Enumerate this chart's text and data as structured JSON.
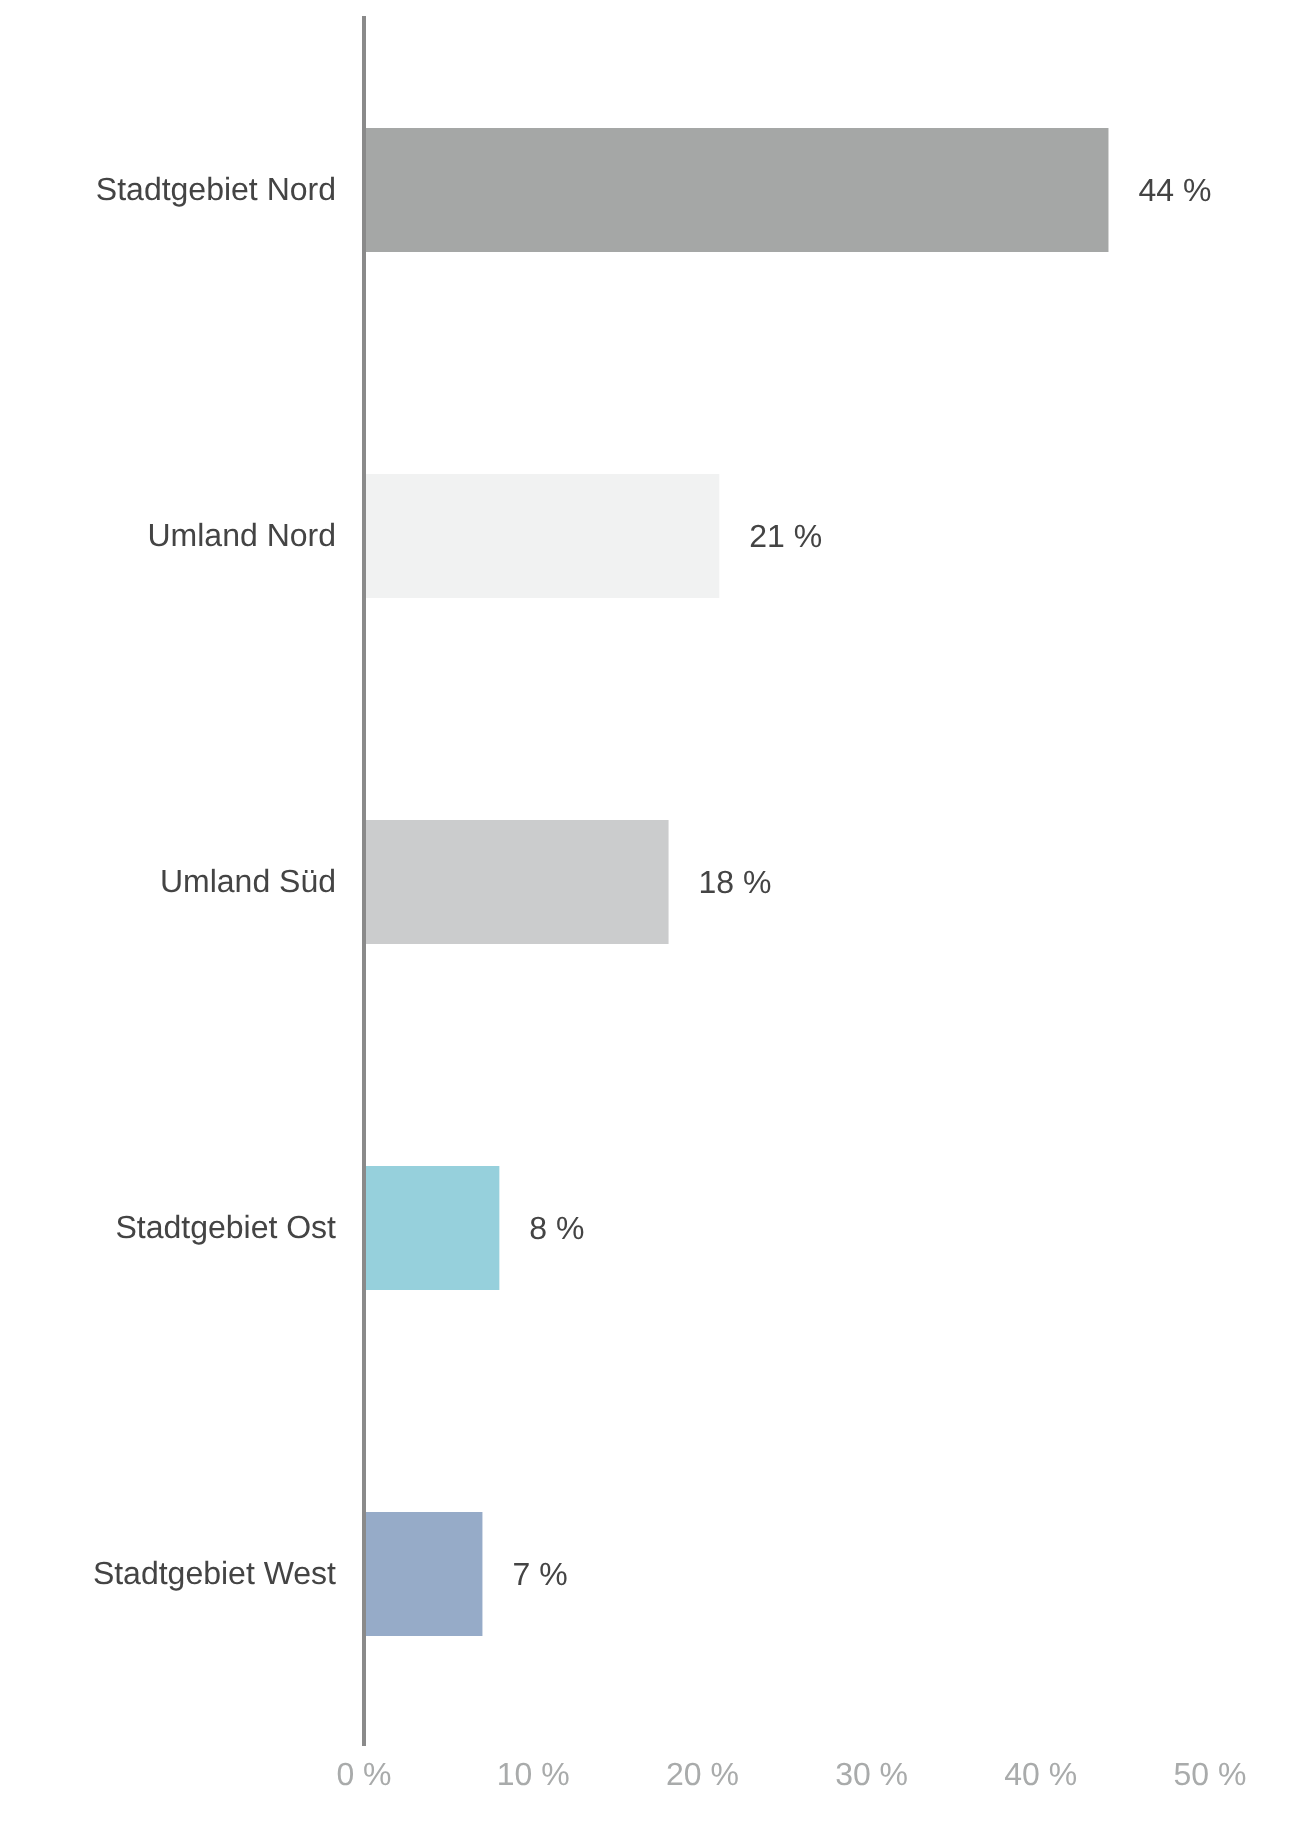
{
  "chart_data": {
    "type": "bar",
    "orientation": "horizontal",
    "categories": [
      "Stadtgebiet Nord",
      "Umland Nord",
      "Umland Süd",
      "Stadtgebiet Ost",
      "Stadtgebiet West"
    ],
    "values": [
      44,
      21,
      18,
      8,
      7
    ],
    "colors": [
      "#a5a7a6",
      "#f1f2f2",
      "#cbcccd",
      "#96d0dc",
      "#96abc8"
    ],
    "value_labels": [
      "44 %",
      "21 %",
      "18 %",
      "8 %",
      "7 %"
    ],
    "xlim": [
      0,
      50
    ],
    "xticks": [
      {
        "value": 0,
        "label": "0 %"
      },
      {
        "value": 10,
        "label": "10 %"
      },
      {
        "value": 20,
        "label": "20 %"
      },
      {
        "value": 30,
        "label": "30 %"
      },
      {
        "value": 40,
        "label": "40 %"
      },
      {
        "value": 50,
        "label": "50 %"
      }
    ],
    "grid": false,
    "legend": false
  }
}
